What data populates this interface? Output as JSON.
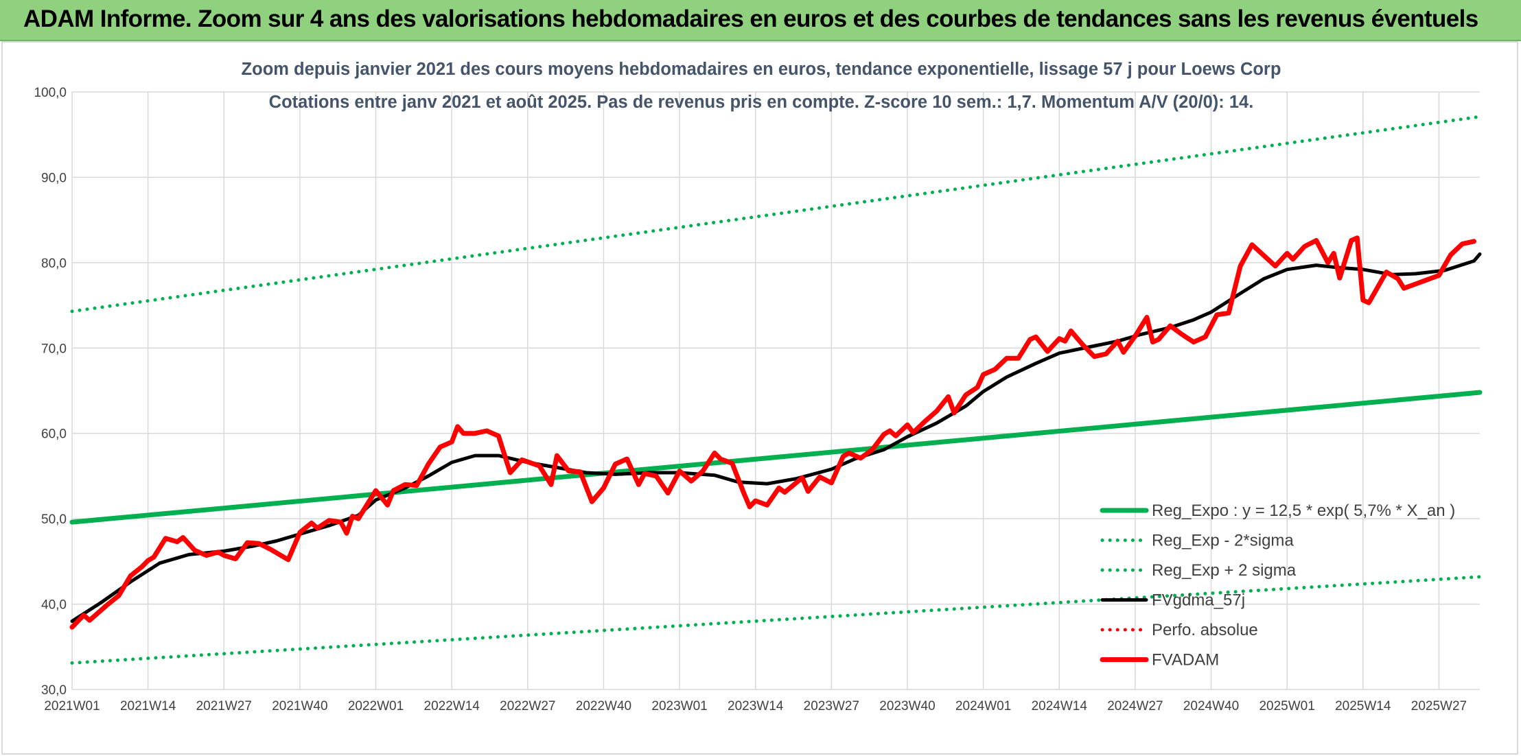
{
  "page": {
    "banner_title": "ADAM Informe. Zoom sur 4 ans des valorisations hebdomadaires en euros et des courbes de tendances sans les revenus éventuels"
  },
  "chart_data": {
    "type": "line",
    "title": "Zoom depuis janvier 2021 des cours moyens hebdomadaires en euros, tendance exponentielle, lissage 57 j pour Loews Corp",
    "subtitle": "Cotations entre janv 2021 et août 2025. Pas de revenus pris en compte. Z-score 10 sem.: 1,7. Momentum A/V (20/0): 14.",
    "xlabel": "",
    "ylabel": "",
    "ylim": [
      30,
      100
    ],
    "yticks": [
      "30,0",
      "40,0",
      "50,0",
      "60,0",
      "70,0",
      "80,0",
      "90,0",
      "100,0"
    ],
    "xlim": [
      "2021W01",
      "2025W34"
    ],
    "xticks": [
      "2021W01",
      "2021W14",
      "2021W27",
      "2021W40",
      "2022W01",
      "2022W14",
      "2022W27",
      "2022W40",
      "2023W01",
      "2023W14",
      "2023W27",
      "2023W40",
      "2024W01",
      "2024W14",
      "2024W27",
      "2024W40",
      "2025W01",
      "2025W14",
      "2025W27"
    ],
    "grid": true,
    "legend_position": "bottom-right",
    "colors": {
      "green": "#00b050",
      "black": "#000000",
      "red": "#ff0000",
      "grid": "#d9d9d9",
      "title": "#44546a"
    },
    "series": [
      {
        "name": "Reg_Expo : y = 12,5 * exp( 5,7% *  X_an )",
        "style": "solid-thick",
        "color": "#00b050",
        "points": [
          [
            "2021W01",
            49.6
          ],
          [
            "2025W34",
            64.8
          ]
        ]
      },
      {
        "name": "Reg_Exp - 2*sigma",
        "style": "dotted",
        "color": "#00b050",
        "points": [
          [
            "2021W01",
            33.1
          ],
          [
            "2025W34",
            43.2
          ]
        ]
      },
      {
        "name": "Reg_Exp + 2 sigma",
        "style": "dotted",
        "color": "#00b050",
        "points": [
          [
            "2021W01",
            74.3
          ],
          [
            "2025W34",
            97.1
          ]
        ]
      },
      {
        "name": "FVgdma_57j",
        "style": "solid",
        "color": "#000000",
        "points": [
          [
            "2021W01",
            38.0
          ],
          [
            "2021W06",
            40.2
          ],
          [
            "2021W11",
            42.6
          ],
          [
            "2021W16",
            44.8
          ],
          [
            "2021W21",
            45.8
          ],
          [
            "2021W27",
            46.2
          ],
          [
            "2021W32",
            46.8
          ],
          [
            "2021W36",
            47.4
          ],
          [
            "2021W40",
            48.2
          ],
          [
            "2021W45",
            49.2
          ],
          [
            "2021W50",
            50.4
          ],
          [
            "2022W01",
            52.2
          ],
          [
            "2022W06",
            53.6
          ],
          [
            "2022W10",
            55.0
          ],
          [
            "2022W14",
            56.6
          ],
          [
            "2022W18",
            57.4
          ],
          [
            "2022W22",
            57.4
          ],
          [
            "2022W27",
            56.6
          ],
          [
            "2022W32",
            56.0
          ],
          [
            "2022W37",
            55.4
          ],
          [
            "2022W42",
            55.2
          ],
          [
            "2022W48",
            55.4
          ],
          [
            "2023W01",
            55.4
          ],
          [
            "2023W07",
            55.1
          ],
          [
            "2023W11",
            54.3
          ],
          [
            "2023W16",
            54.1
          ],
          [
            "2023W21",
            54.7
          ],
          [
            "2023W27",
            55.8
          ],
          [
            "2023W31",
            57.0
          ],
          [
            "2023W36",
            58.1
          ],
          [
            "2023W40",
            59.6
          ],
          [
            "2023W45",
            61.2
          ],
          [
            "2023W50",
            63.2
          ],
          [
            "2024W01",
            64.9
          ],
          [
            "2024W05",
            66.6
          ],
          [
            "2024W10",
            68.2
          ],
          [
            "2024W14",
            69.4
          ],
          [
            "2024W19",
            70.1
          ],
          [
            "2024W24",
            70.8
          ],
          [
            "2024W28",
            71.6
          ],
          [
            "2024W33",
            72.4
          ],
          [
            "2024W37",
            73.3
          ],
          [
            "2024W40",
            74.2
          ],
          [
            "2024W45",
            76.4
          ],
          [
            "2024W49",
            78.1
          ],
          [
            "2025W01",
            79.2
          ],
          [
            "2025W06",
            79.7
          ],
          [
            "2025W10",
            79.4
          ],
          [
            "2025W14",
            79.2
          ],
          [
            "2025W19",
            78.6
          ],
          [
            "2025W23",
            78.7
          ],
          [
            "2025W28",
            79.1
          ],
          [
            "2025W33",
            80.2
          ],
          [
            "2025W34",
            81.0
          ]
        ]
      },
      {
        "name": "Perfo. absolue",
        "style": "dotted",
        "color": "#ff0000",
        "points": []
      },
      {
        "name": "FVADAM",
        "style": "solid-thick",
        "color": "#ff0000",
        "points": [
          [
            "2021W01",
            37.3
          ],
          [
            "2021W03",
            38.7
          ],
          [
            "2021W04",
            38.1
          ],
          [
            "2021W07",
            39.9
          ],
          [
            "2021W09",
            41.0
          ],
          [
            "2021W11",
            43.3
          ],
          [
            "2021W13",
            44.4
          ],
          [
            "2021W14",
            45.1
          ],
          [
            "2021W15",
            45.5
          ],
          [
            "2021W17",
            47.7
          ],
          [
            "2021W19",
            47.3
          ],
          [
            "2021W20",
            47.8
          ],
          [
            "2021W22",
            46.3
          ],
          [
            "2021W24",
            45.7
          ],
          [
            "2021W26",
            46.1
          ],
          [
            "2021W27",
            45.7
          ],
          [
            "2021W29",
            45.3
          ],
          [
            "2021W31",
            47.2
          ],
          [
            "2021W33",
            47.1
          ],
          [
            "2021W35",
            46.4
          ],
          [
            "2021W38",
            45.2
          ],
          [
            "2021W40",
            48.4
          ],
          [
            "2021W42",
            49.5
          ],
          [
            "2021W43",
            48.9
          ],
          [
            "2021W45",
            49.8
          ],
          [
            "2021W47",
            49.6
          ],
          [
            "2021W48",
            48.3
          ],
          [
            "2021W49",
            50.3
          ],
          [
            "2021W50",
            50.0
          ],
          [
            "2022W01",
            53.3
          ],
          [
            "2022W03",
            51.6
          ],
          [
            "2022W04",
            53.3
          ],
          [
            "2022W06",
            54.0
          ],
          [
            "2022W08",
            53.9
          ],
          [
            "2022W10",
            56.4
          ],
          [
            "2022W12",
            58.4
          ],
          [
            "2022W14",
            59.0
          ],
          [
            "2022W15",
            60.8
          ],
          [
            "2022W16",
            60.0
          ],
          [
            "2022W18",
            60.0
          ],
          [
            "2022W20",
            60.3
          ],
          [
            "2022W22",
            59.7
          ],
          [
            "2022W24",
            55.4
          ],
          [
            "2022W26",
            56.9
          ],
          [
            "2022W29",
            56.2
          ],
          [
            "2022W31",
            54.0
          ],
          [
            "2022W32",
            57.4
          ],
          [
            "2022W34",
            55.6
          ],
          [
            "2022W36",
            55.5
          ],
          [
            "2022W38",
            52.0
          ],
          [
            "2022W40",
            53.6
          ],
          [
            "2022W42",
            56.4
          ],
          [
            "2022W44",
            57.0
          ],
          [
            "2022W46",
            54.0
          ],
          [
            "2022W47",
            55.3
          ],
          [
            "2022W49",
            55.0
          ],
          [
            "2022W51",
            53.0
          ],
          [
            "2023W01",
            55.6
          ],
          [
            "2023W03",
            54.4
          ],
          [
            "2023W05",
            55.6
          ],
          [
            "2023W07",
            57.7
          ],
          [
            "2023W08",
            57.0
          ],
          [
            "2023W10",
            56.5
          ],
          [
            "2023W12",
            53.0
          ],
          [
            "2023W13",
            51.4
          ],
          [
            "2023W14",
            52.1
          ],
          [
            "2023W16",
            51.6
          ],
          [
            "2023W18",
            53.6
          ],
          [
            "2023W19",
            53.1
          ],
          [
            "2023W22",
            54.8
          ],
          [
            "2023W23",
            53.2
          ],
          [
            "2023W25",
            54.9
          ],
          [
            "2023W27",
            54.2
          ],
          [
            "2023W29",
            57.3
          ],
          [
            "2023W30",
            57.7
          ],
          [
            "2023W32",
            57.1
          ],
          [
            "2023W34",
            58.1
          ],
          [
            "2023W36",
            59.9
          ],
          [
            "2023W37",
            60.3
          ],
          [
            "2023W38",
            59.7
          ],
          [
            "2023W40",
            61.0
          ],
          [
            "2023W41",
            60.1
          ],
          [
            "2023W43",
            61.4
          ],
          [
            "2023W45",
            62.6
          ],
          [
            "2023W47",
            64.3
          ],
          [
            "2023W48",
            62.4
          ],
          [
            "2023W50",
            64.5
          ],
          [
            "2023W52",
            65.4
          ],
          [
            "2024W01",
            66.9
          ],
          [
            "2024W03",
            67.5
          ],
          [
            "2024W05",
            68.8
          ],
          [
            "2024W07",
            68.8
          ],
          [
            "2024W09",
            71.0
          ],
          [
            "2024W10",
            71.3
          ],
          [
            "2024W12",
            69.6
          ],
          [
            "2024W14",
            71.1
          ],
          [
            "2024W15",
            70.8
          ],
          [
            "2024W16",
            72.0
          ],
          [
            "2024W18",
            70.4
          ],
          [
            "2024W20",
            69.0
          ],
          [
            "2024W22",
            69.3
          ],
          [
            "2024W24",
            70.8
          ],
          [
            "2024W25",
            69.5
          ],
          [
            "2024W27",
            71.4
          ],
          [
            "2024W29",
            73.6
          ],
          [
            "2024W30",
            70.7
          ],
          [
            "2024W31",
            71.0
          ],
          [
            "2024W33",
            72.6
          ],
          [
            "2024W35",
            71.6
          ],
          [
            "2024W37",
            70.7
          ],
          [
            "2024W39",
            71.3
          ],
          [
            "2024W41",
            73.9
          ],
          [
            "2024W43",
            74.1
          ],
          [
            "2024W45",
            79.6
          ],
          [
            "2024W47",
            82.1
          ],
          [
            "2024W51",
            79.6
          ],
          [
            "2025W01",
            81.1
          ],
          [
            "2025W02",
            80.4
          ],
          [
            "2025W04",
            81.9
          ],
          [
            "2025W06",
            82.6
          ],
          [
            "2025W08",
            80.0
          ],
          [
            "2025W09",
            81.1
          ],
          [
            "2025W10",
            78.2
          ],
          [
            "2025W12",
            82.6
          ],
          [
            "2025W13",
            82.9
          ],
          [
            "2025W14",
            75.6
          ],
          [
            "2025W15",
            75.3
          ],
          [
            "2025W18",
            78.9
          ],
          [
            "2025W20",
            78.1
          ],
          [
            "2025W21",
            77.0
          ],
          [
            "2025W23",
            77.5
          ],
          [
            "2025W25",
            78.0
          ],
          [
            "2025W27",
            78.5
          ],
          [
            "2025W29",
            80.9
          ],
          [
            "2025W31",
            82.2
          ],
          [
            "2025W33",
            82.5
          ]
        ]
      }
    ]
  }
}
